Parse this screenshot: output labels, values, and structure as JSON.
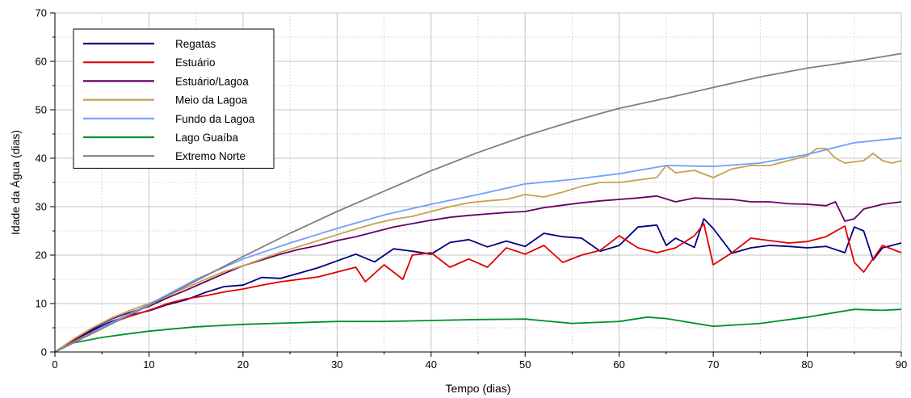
{
  "chart_data": {
    "type": "line",
    "xlabel": "Tempo (dias)",
    "ylabel": "Idade da Água (dias)",
    "xlim": [
      0,
      90
    ],
    "ylim": [
      0,
      70
    ],
    "x_ticks": [
      0,
      10,
      20,
      30,
      40,
      50,
      60,
      70,
      80,
      90
    ],
    "y_ticks": [
      0,
      10,
      20,
      30,
      40,
      50,
      60,
      70
    ],
    "grid": true,
    "legend_position": "top-left",
    "series": [
      {
        "name": "Regatas",
        "color": "#000080",
        "x": [
          0,
          2,
          4,
          6,
          8,
          10,
          12,
          14,
          16,
          18,
          20,
          22,
          24,
          26,
          28,
          30,
          32,
          34,
          36,
          38,
          40,
          42,
          44,
          46,
          48,
          50,
          52,
          54,
          56,
          58,
          60,
          62,
          64,
          65,
          66,
          68,
          69,
          70,
          72,
          74,
          76,
          78,
          80,
          82,
          84,
          85,
          86,
          87,
          88,
          90
        ],
        "y": [
          0,
          2.5,
          4.5,
          6.3,
          7.6,
          8.5,
          9.8,
          10.8,
          12.3,
          13.5,
          13.8,
          15.4,
          15.2,
          16.3,
          17.4,
          18.8,
          20.2,
          18.6,
          21.3,
          20.8,
          20.2,
          22.6,
          23.2,
          21.7,
          22.9,
          21.8,
          24.5,
          23.8,
          23.5,
          20.8,
          22.0,
          25.8,
          26.2,
          22.0,
          23.5,
          21.6,
          27.5,
          25.5,
          20.4,
          21.5,
          22.0,
          21.8,
          21.5,
          21.8,
          20.5,
          25.8,
          25.0,
          19.0,
          21.5,
          22.5
        ]
      },
      {
        "name": "Estuário",
        "color": "#e00000",
        "x": [
          0,
          2,
          4,
          6,
          8,
          10,
          12,
          14,
          16,
          18,
          20,
          22,
          24,
          26,
          28,
          30,
          32,
          33,
          35,
          37,
          38,
          40,
          42,
          44,
          46,
          48,
          50,
          52,
          54,
          56,
          58,
          60,
          62,
          64,
          66,
          68,
          69,
          70,
          72,
          74,
          76,
          78,
          80,
          82,
          84,
          85,
          86,
          88,
          90
        ],
        "y": [
          0,
          2.2,
          4.2,
          6.0,
          7.4,
          8.6,
          10.0,
          11.0,
          11.6,
          12.4,
          13.0,
          13.8,
          14.5,
          15.0,
          15.5,
          16.5,
          17.5,
          14.5,
          18.0,
          15.0,
          20.0,
          20.5,
          17.5,
          19.2,
          17.5,
          21.5,
          20.2,
          22.0,
          18.5,
          20.0,
          21.0,
          24.0,
          21.5,
          20.5,
          21.5,
          24.0,
          26.5,
          18.0,
          20.5,
          23.5,
          23.0,
          22.5,
          22.8,
          23.8,
          26.0,
          18.5,
          16.5,
          22.0,
          20.5
        ]
      },
      {
        "name": "Estuário/Lagoa",
        "color": "#660066",
        "x": [
          0,
          2,
          4,
          6,
          8,
          10,
          12,
          14,
          16,
          18,
          20,
          22,
          24,
          26,
          28,
          30,
          32,
          34,
          36,
          38,
          40,
          42,
          44,
          46,
          48,
          50,
          52,
          54,
          56,
          58,
          60,
          62,
          64,
          66,
          68,
          70,
          72,
          74,
          76,
          78,
          80,
          82,
          83,
          84,
          85,
          86,
          88,
          90
        ],
        "y": [
          0,
          2.6,
          4.8,
          6.8,
          8.2,
          9.4,
          11.2,
          12.8,
          14.5,
          16.2,
          17.8,
          19.0,
          20.2,
          21.2,
          22.0,
          23.0,
          23.8,
          24.8,
          25.8,
          26.5,
          27.2,
          27.8,
          28.2,
          28.5,
          28.8,
          29.0,
          29.8,
          30.3,
          30.8,
          31.2,
          31.5,
          31.8,
          32.2,
          31.0,
          31.8,
          31.6,
          31.5,
          31.0,
          31.0,
          30.6,
          30.5,
          30.2,
          31.0,
          27.0,
          27.5,
          29.5,
          30.5,
          31.0
        ]
      },
      {
        "name": "Meio da Lagoa",
        "color": "#c8a050",
        "x": [
          0,
          2,
          4,
          6,
          8,
          10,
          12,
          14,
          16,
          18,
          20,
          22,
          24,
          26,
          28,
          30,
          32,
          34,
          36,
          38,
          40,
          42,
          44,
          46,
          48,
          50,
          52,
          54,
          56,
          58,
          60,
          62,
          64,
          65,
          66,
          68,
          70,
          72,
          74,
          76,
          78,
          80,
          81,
          82,
          83,
          84,
          86,
          87,
          88,
          89,
          90
        ],
        "y": [
          0,
          2.7,
          5.0,
          7.0,
          8.6,
          10.0,
          11.6,
          13.3,
          15.0,
          16.6,
          17.8,
          19.2,
          20.6,
          21.8,
          23.0,
          24.2,
          25.4,
          26.5,
          27.4,
          28.0,
          29.0,
          30.0,
          30.8,
          31.2,
          31.5,
          32.5,
          32.0,
          33.0,
          34.2,
          35.0,
          35.0,
          35.5,
          36.0,
          38.5,
          37.0,
          37.5,
          36.0,
          37.8,
          38.5,
          38.5,
          39.5,
          40.5,
          42.0,
          42.0,
          40.0,
          39.0,
          39.5,
          41.0,
          39.5,
          39.0,
          39.5
        ]
      },
      {
        "name": "Fundo da Lagoa",
        "color": "#6fa0ff",
        "x": [
          0,
          5,
          10,
          15,
          20,
          25,
          30,
          35,
          40,
          45,
          50,
          55,
          60,
          65,
          70,
          75,
          80,
          85,
          90
        ],
        "y": [
          0,
          5.1,
          9.8,
          15.0,
          19.2,
          22.5,
          25.5,
          28.3,
          30.5,
          32.5,
          34.7,
          35.6,
          36.8,
          38.5,
          38.3,
          39.0,
          40.8,
          43.2,
          44.2
        ]
      },
      {
        "name": "Lago Guaíba",
        "color": "#009030",
        "x": [
          0,
          2,
          5,
          8,
          10,
          15,
          20,
          25,
          30,
          35,
          40,
          45,
          50,
          55,
          60,
          63,
          65,
          70,
          75,
          80,
          85,
          88,
          90
        ],
        "y": [
          0,
          1.9,
          3.0,
          3.8,
          4.3,
          5.2,
          5.7,
          6.0,
          6.3,
          6.3,
          6.5,
          6.7,
          6.8,
          5.9,
          6.3,
          7.2,
          6.9,
          5.3,
          5.9,
          7.2,
          8.8,
          8.6,
          8.8
        ]
      },
      {
        "name": "Extremo Norte",
        "color": "#808080",
        "x": [
          0,
          5,
          10,
          15,
          20,
          25,
          30,
          35,
          40,
          45,
          50,
          55,
          60,
          65,
          70,
          75,
          80,
          85,
          90
        ],
        "y": [
          0,
          4.8,
          9.6,
          14.7,
          19.7,
          24.5,
          29.0,
          33.2,
          37.4,
          41.2,
          44.6,
          47.6,
          50.3,
          52.4,
          54.6,
          56.8,
          58.6,
          60.0,
          61.6
        ]
      }
    ]
  }
}
